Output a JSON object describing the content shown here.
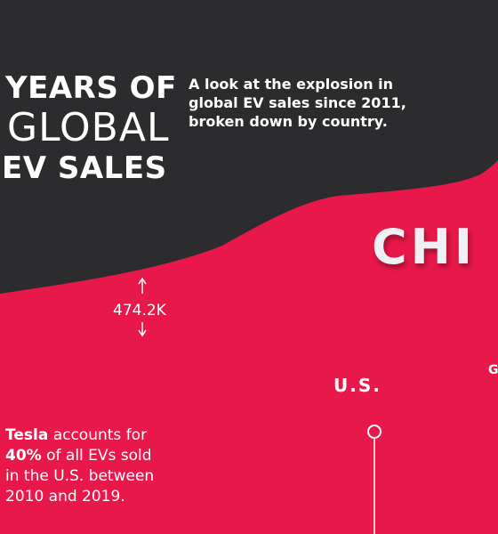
{
  "title": {
    "line1": "YEARS OF",
    "line2": "GLOBAL",
    "line3": "EV SALES"
  },
  "subtitle": {
    "line1": "A look at the explosion in",
    "line2": "global EV sales since 2011,",
    "line3": "broken down by country."
  },
  "annotation": {
    "brand": "Tesla",
    "text1": " accounts for",
    "pct": "40%",
    "text2": " of all EVs sold",
    "line3": "in the U.S. between",
    "line4": "2010 and 2019."
  },
  "colors": {
    "background": "#2b2b2e",
    "china": "#e8194a",
    "us": "#1e6fd0",
    "germany": "#d9b63a",
    "other_1": "#d8d8da",
    "other_2": "#a9a9ad",
    "other_3": "#7b7b80",
    "other_4": "#56565b"
  },
  "chart_data": {
    "type": "area",
    "stacked": true,
    "series_labels": {
      "china": "CHI",
      "us": "U.S.",
      "germany": "G"
    },
    "annotations": [
      {
        "label": "474.2K",
        "series": "china"
      }
    ]
  }
}
